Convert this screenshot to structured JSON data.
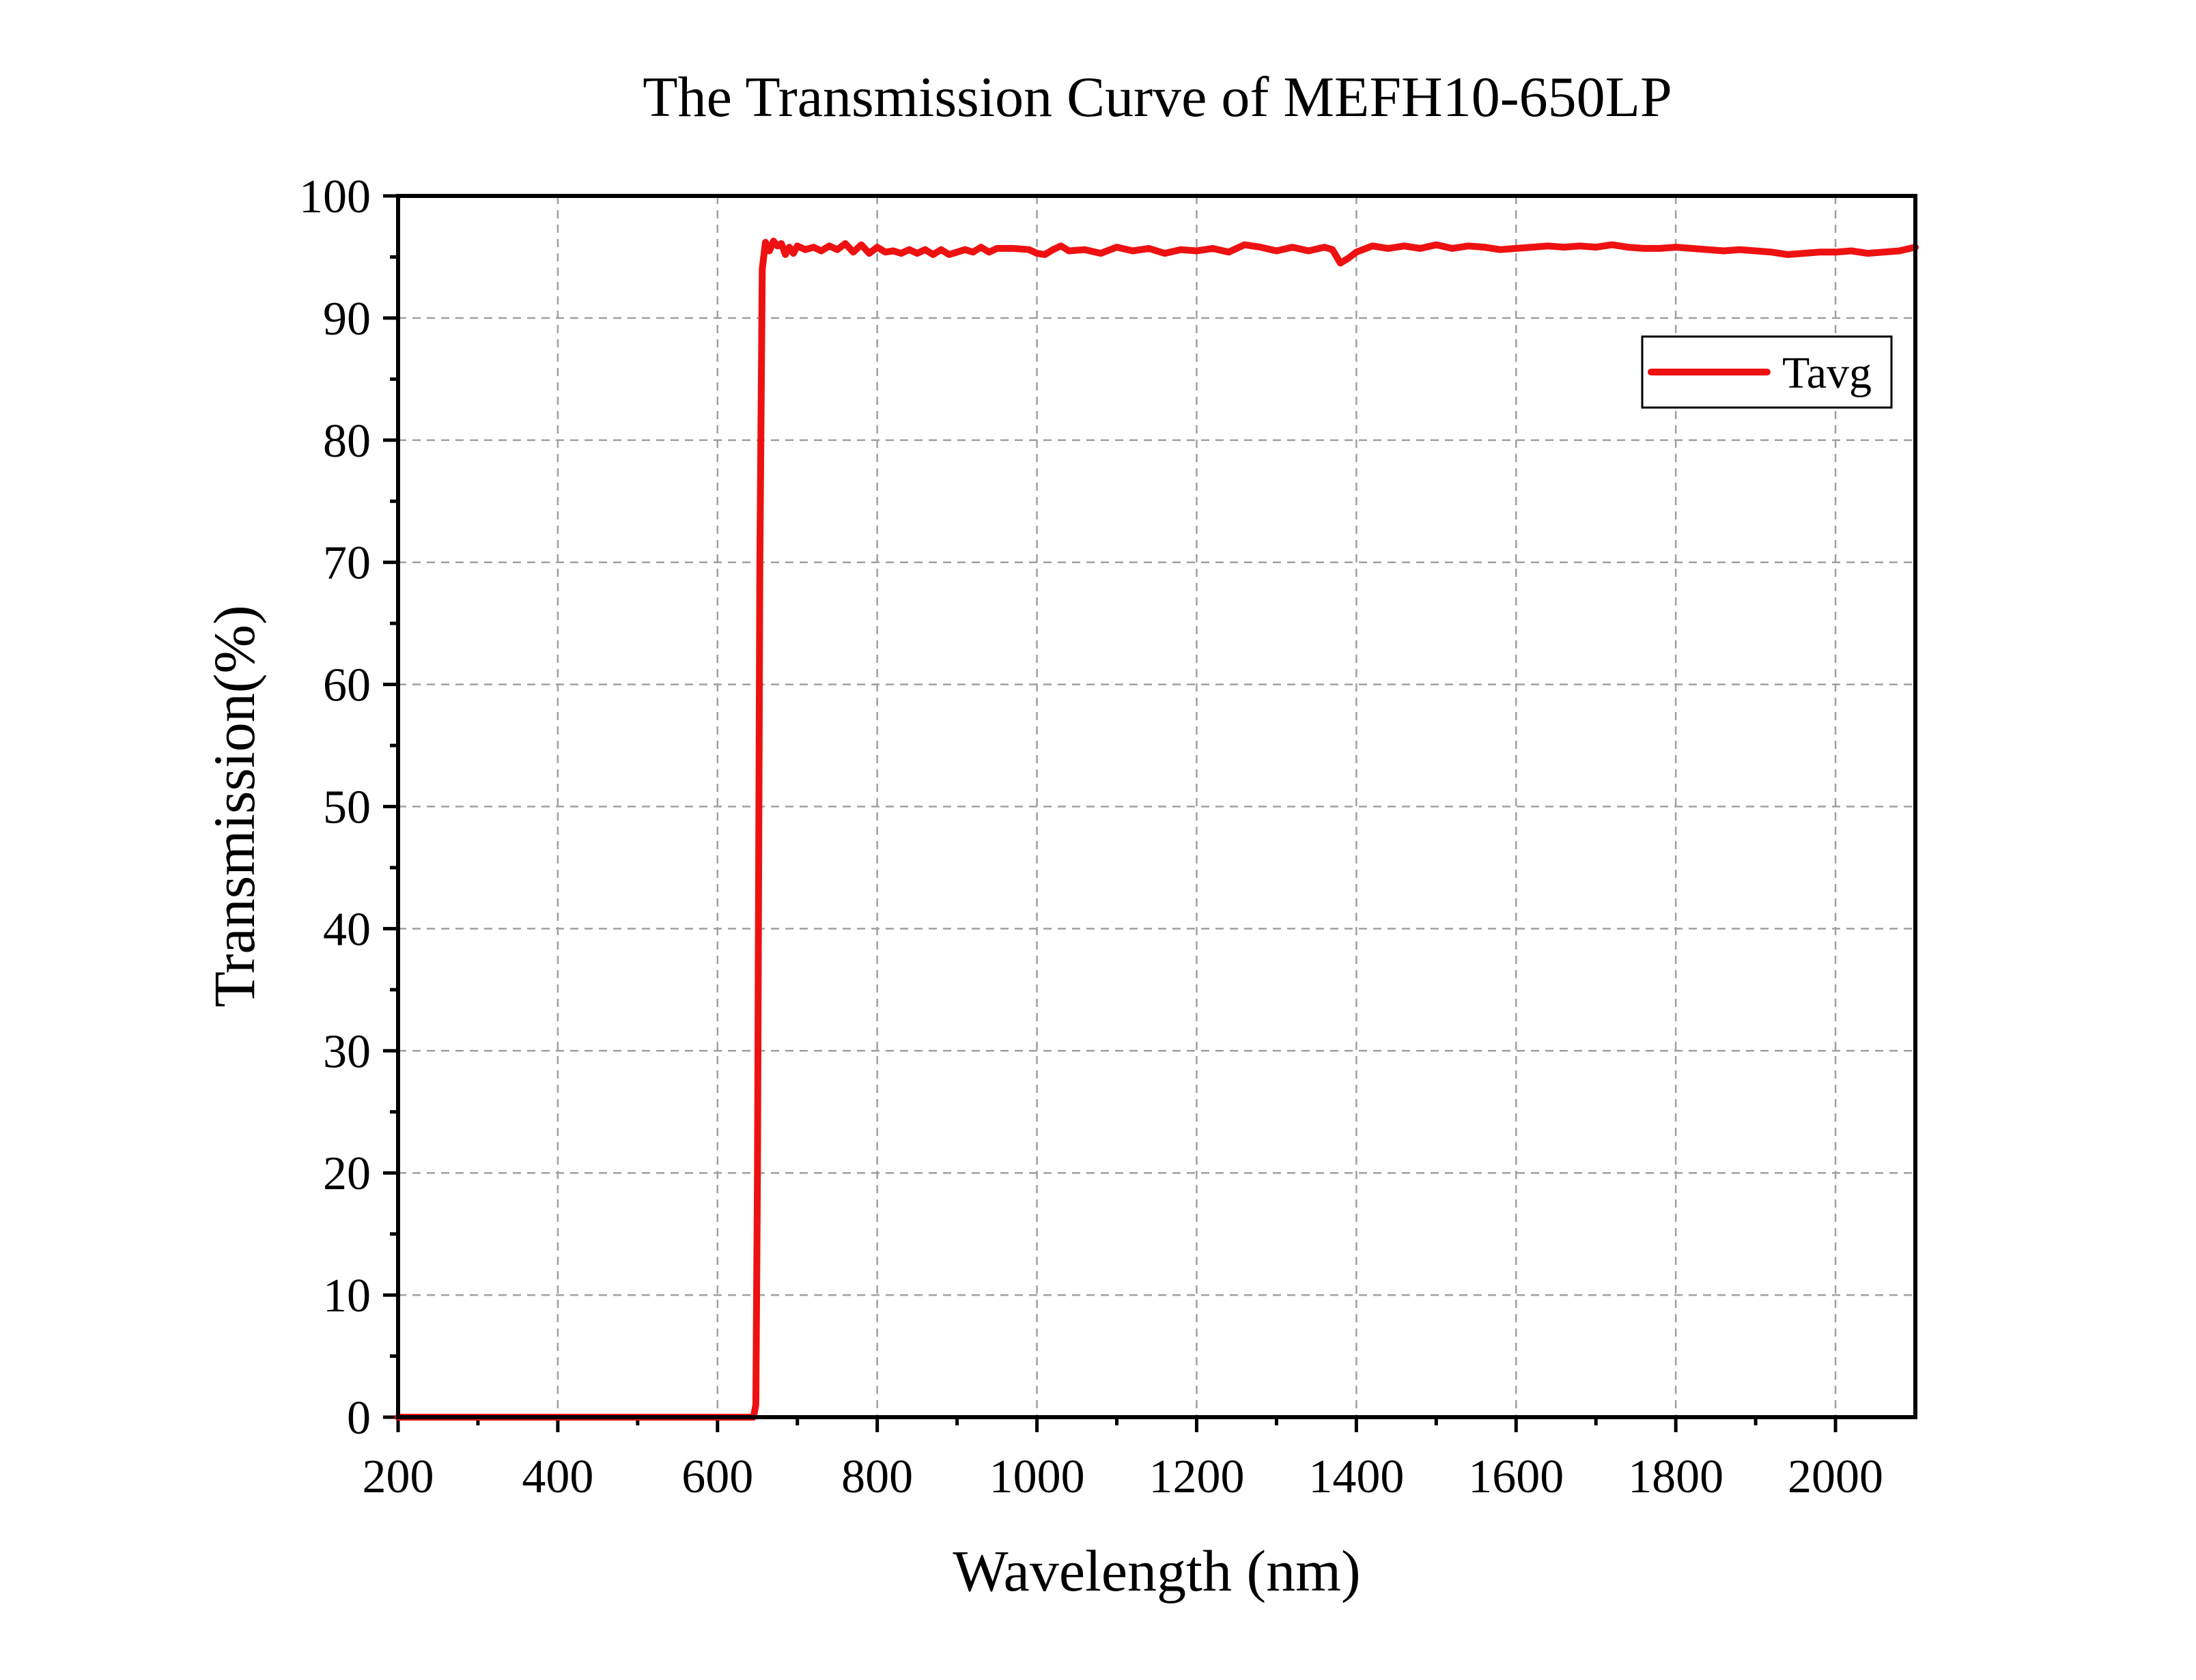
{
  "chart_data": {
    "type": "line",
    "title": "The Transmission Curve of MEFH10-650LP",
    "xlabel": "Wavelength (nm)",
    "ylabel": "Transmission(%)",
    "xlim": [
      200,
      2100
    ],
    "ylim": [
      0,
      100
    ],
    "x_ticks": [
      200,
      400,
      600,
      800,
      1000,
      1200,
      1400,
      1600,
      1800,
      2000
    ],
    "y_ticks": [
      0,
      10,
      20,
      30,
      40,
      50,
      60,
      70,
      80,
      90,
      100
    ],
    "x_minor_step": 100,
    "y_minor_step": 5,
    "grid": true,
    "legend_position": "top-right",
    "series": [
      {
        "name": "Tavg",
        "color": "#ee1111",
        "points": [
          [
            200,
            0
          ],
          [
            600,
            0
          ],
          [
            645,
            0
          ],
          [
            648,
            1
          ],
          [
            650,
            20
          ],
          [
            653,
            70
          ],
          [
            656,
            94
          ],
          [
            660,
            96.2
          ],
          [
            665,
            95.5
          ],
          [
            670,
            96.3
          ],
          [
            675,
            95.9
          ],
          [
            680,
            96.1
          ],
          [
            685,
            95.2
          ],
          [
            690,
            95.8
          ],
          [
            695,
            95.3
          ],
          [
            700,
            95.9
          ],
          [
            710,
            95.6
          ],
          [
            720,
            95.8
          ],
          [
            730,
            95.5
          ],
          [
            740,
            95.9
          ],
          [
            750,
            95.6
          ],
          [
            760,
            96.1
          ],
          [
            770,
            95.4
          ],
          [
            780,
            96
          ],
          [
            790,
            95.3
          ],
          [
            800,
            95.8
          ],
          [
            810,
            95.4
          ],
          [
            820,
            95.5
          ],
          [
            830,
            95.3
          ],
          [
            840,
            95.6
          ],
          [
            850,
            95.3
          ],
          [
            860,
            95.6
          ],
          [
            870,
            95.2
          ],
          [
            880,
            95.6
          ],
          [
            890,
            95.2
          ],
          [
            900,
            95.4
          ],
          [
            910,
            95.6
          ],
          [
            920,
            95.4
          ],
          [
            930,
            95.8
          ],
          [
            940,
            95.4
          ],
          [
            950,
            95.7
          ],
          [
            970,
            95.7
          ],
          [
            990,
            95.6
          ],
          [
            1000,
            95.3
          ],
          [
            1010,
            95.2
          ],
          [
            1020,
            95.6
          ],
          [
            1030,
            95.9
          ],
          [
            1040,
            95.5
          ],
          [
            1060,
            95.6
          ],
          [
            1080,
            95.3
          ],
          [
            1100,
            95.8
          ],
          [
            1120,
            95.5
          ],
          [
            1140,
            95.7
          ],
          [
            1160,
            95.3
          ],
          [
            1180,
            95.6
          ],
          [
            1200,
            95.5
          ],
          [
            1220,
            95.7
          ],
          [
            1240,
            95.4
          ],
          [
            1260,
            96
          ],
          [
            1280,
            95.8
          ],
          [
            1300,
            95.5
          ],
          [
            1320,
            95.8
          ],
          [
            1340,
            95.5
          ],
          [
            1360,
            95.8
          ],
          [
            1370,
            95.6
          ],
          [
            1380,
            94.5
          ],
          [
            1390,
            94.9
          ],
          [
            1400,
            95.4
          ],
          [
            1420,
            95.9
          ],
          [
            1440,
            95.7
          ],
          [
            1460,
            95.9
          ],
          [
            1480,
            95.7
          ],
          [
            1500,
            96
          ],
          [
            1520,
            95.7
          ],
          [
            1540,
            95.9
          ],
          [
            1560,
            95.8
          ],
          [
            1580,
            95.6
          ],
          [
            1600,
            95.7
          ],
          [
            1620,
            95.8
          ],
          [
            1640,
            95.9
          ],
          [
            1660,
            95.8
          ],
          [
            1680,
            95.9
          ],
          [
            1700,
            95.8
          ],
          [
            1720,
            96
          ],
          [
            1740,
            95.8
          ],
          [
            1760,
            95.7
          ],
          [
            1780,
            95.7
          ],
          [
            1800,
            95.8
          ],
          [
            1820,
            95.7
          ],
          [
            1840,
            95.6
          ],
          [
            1860,
            95.5
          ],
          [
            1880,
            95.6
          ],
          [
            1900,
            95.5
          ],
          [
            1920,
            95.4
          ],
          [
            1940,
            95.2
          ],
          [
            1960,
            95.3
          ],
          [
            1980,
            95.4
          ],
          [
            2000,
            95.4
          ],
          [
            2020,
            95.5
          ],
          [
            2040,
            95.3
          ],
          [
            2060,
            95.4
          ],
          [
            2080,
            95.5
          ],
          [
            2100,
            95.8
          ]
        ]
      }
    ]
  }
}
